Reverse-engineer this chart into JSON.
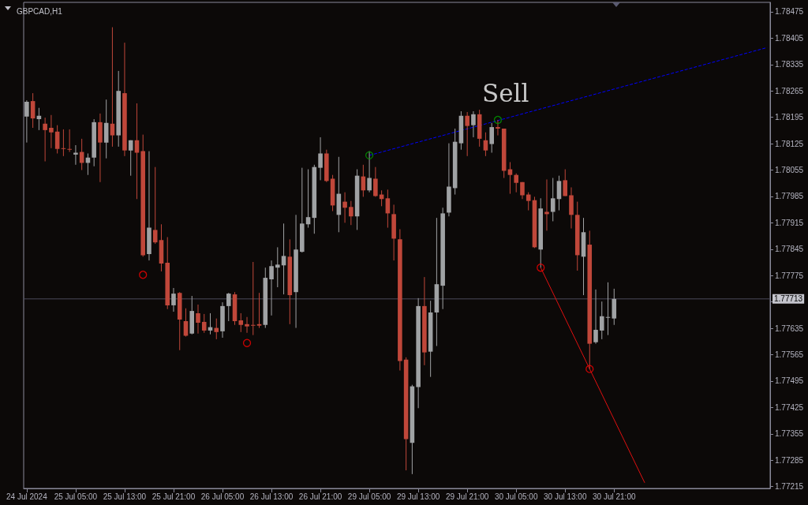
{
  "chart_data": {
    "type": "candlestick",
    "title": "GBPCAD,H1",
    "categories": [
      "24 Jul 2024",
      null,
      null,
      null,
      null,
      null,
      null,
      null,
      "25 Jul 05:00",
      null,
      null,
      null,
      null,
      null,
      null,
      null,
      "25 Jul 13:00",
      null,
      null,
      null,
      null,
      null,
      null,
      null,
      "25 Jul 21:00",
      null,
      null,
      null,
      null,
      null,
      null,
      null,
      "26 Jul 05:00",
      null,
      null,
      null,
      null,
      null,
      null,
      null,
      "26 Jul 13:00",
      null,
      null,
      null,
      null,
      null,
      null,
      null,
      "26 Jul 21:00",
      null,
      null,
      null,
      null,
      null,
      null,
      null,
      "29 Jul 05:00",
      null,
      null,
      null,
      null,
      null,
      null,
      null,
      "29 Jul 13:00",
      null,
      null,
      null,
      null,
      null,
      null,
      null,
      "29 Jul 21:00",
      null,
      null,
      null,
      null,
      null,
      null,
      null,
      "30 Jul 05:00",
      null,
      null,
      null,
      null,
      null,
      null,
      null,
      "30 Jul 13:00",
      null,
      null,
      null,
      null,
      null,
      null,
      null,
      "30 Jul 21:00",
      null,
      null,
      null,
      null,
      null,
      null,
      null,
      null,
      null,
      null,
      null,
      null,
      null,
      null,
      null,
      null,
      null,
      null,
      null,
      null,
      null,
      null,
      null,
      null,
      null
    ],
    "ylim": [
      1.7721,
      1.785
    ],
    "yticks": [
      1.78475,
      1.78405,
      1.78335,
      1.78265,
      1.78195,
      1.78125,
      1.78055,
      1.77985,
      1.77915,
      1.77845,
      1.77775,
      {
        "value": 1.77705,
        "label": null
      },
      1.77635,
      1.77565,
      1.77495,
      1.77425,
      1.77355,
      1.77285,
      1.77215
    ],
    "ohlc": [
      [
        1.78197,
        1.7824,
        1.78128,
        1.78236
      ],
      [
        1.78238,
        1.78259,
        1.78167,
        1.78192
      ],
      [
        1.7819,
        1.7822,
        1.78161,
        1.78199
      ],
      [
        1.78178,
        1.78194,
        1.78078,
        1.78161
      ],
      [
        1.78167,
        1.78201,
        1.78113,
        1.78155
      ],
      [
        1.78157,
        1.78174,
        1.78099,
        1.78111
      ],
      [
        1.78113,
        1.78163,
        1.78092,
        1.78111
      ],
      [
        1.78111,
        1.78163,
        1.78103,
        1.78109
      ],
      [
        1.78096,
        1.78121,
        1.78069,
        1.78101
      ],
      [
        1.78103,
        1.78138,
        1.78055,
        1.78074
      ],
      [
        1.78074,
        1.78099,
        1.78042,
        1.78088
      ],
      [
        1.78088,
        1.7819,
        1.78065,
        1.78182
      ],
      [
        1.78182,
        1.78205,
        1.78023,
        1.78128
      ],
      [
        1.78128,
        1.78242,
        1.78086,
        1.7818
      ],
      [
        1.78178,
        1.78434,
        1.78117,
        1.78147
      ],
      [
        1.78147,
        1.78318,
        1.78117,
        1.78265
      ],
      [
        1.78259,
        1.78393,
        1.78092,
        1.78107
      ],
      [
        1.78107,
        1.78134,
        1.7804,
        1.78134
      ],
      [
        1.78134,
        1.78232,
        1.77978,
        1.78101
      ],
      [
        1.78105,
        1.78149,
        1.77825,
        1.77829
      ],
      [
        1.77832,
        1.78105,
        1.77815,
        1.77902
      ],
      [
        1.77896,
        1.78063,
        1.77859,
        1.77863
      ],
      [
        1.77869,
        1.77911,
        1.77786,
        1.77807
      ],
      [
        1.77809,
        1.77877,
        1.77686,
        1.77696
      ],
      [
        1.77696,
        1.77742,
        1.77679,
        1.77727
      ],
      [
        1.77729,
        1.77731,
        1.77577,
        1.77658
      ],
      [
        1.77654,
        1.77688,
        1.77613,
        1.77615
      ],
      [
        1.77621,
        1.77721,
        1.77619,
        1.77681
      ],
      [
        1.77675,
        1.77698,
        1.77621,
        1.7765
      ],
      [
        1.77652,
        1.77673,
        1.77623,
        1.77629
      ],
      [
        1.77629,
        1.77675,
        1.77619,
        1.77638
      ],
      [
        1.77636,
        1.77661,
        1.77606,
        1.77625
      ],
      [
        1.77627,
        1.77704,
        1.7761,
        1.77694
      ],
      [
        1.77694,
        1.77729,
        1.77654,
        1.77727
      ],
      [
        1.77725,
        1.77731,
        1.77644,
        1.77654
      ],
      [
        1.77656,
        1.77675,
        1.77625,
        1.77644
      ],
      [
        1.77646,
        1.77665,
        1.77623,
        1.7764
      ],
      [
        1.77644,
        1.77811,
        1.77617,
        1.77642
      ],
      [
        1.77646,
        1.77729,
        1.77636,
        1.77642
      ],
      [
        1.77644,
        1.77796,
        1.77636,
        1.77769
      ],
      [
        1.77765,
        1.77815,
        1.77669,
        1.778
      ],
      [
        1.77796,
        1.7785,
        1.77744,
        1.77804
      ],
      [
        1.77802,
        1.77913,
        1.77725,
        1.77827
      ],
      [
        1.77825,
        1.77871,
        1.77646,
        1.77723
      ],
      [
        1.77731,
        1.77936,
        1.77636,
        1.77844
      ],
      [
        1.77838,
        1.78061,
        1.77836,
        1.77913
      ],
      [
        1.77911,
        1.78057,
        1.77902,
        1.7793
      ],
      [
        1.77928,
        1.78069,
        1.77886,
        1.78063
      ],
      [
        1.78061,
        1.78142,
        1.78028,
        1.78099
      ],
      [
        1.78099,
        1.78109,
        1.78023,
        1.78026
      ],
      [
        1.78032,
        1.78042,
        1.77946,
        1.77961
      ],
      [
        1.77936,
        1.7809,
        1.7789,
        1.77992
      ],
      [
        1.77971,
        1.77996,
        1.77915,
        1.77955
      ],
      [
        1.77957,
        1.77973,
        1.77909,
        1.77932
      ],
      [
        1.77932,
        1.78057,
        1.77896,
        1.7804
      ],
      [
        1.78038,
        1.78069,
        1.77984,
        1.78001
      ],
      [
        1.78001,
        1.78105,
        1.77996,
        1.78034
      ],
      [
        1.78032,
        1.78063,
        1.77984,
        1.77986
      ],
      [
        1.7799,
        1.78001,
        1.77959,
        1.77978
      ],
      [
        1.7798,
        1.78003,
        1.77902,
        1.7794
      ],
      [
        1.77938,
        1.77963,
        1.77815,
        1.77873
      ],
      [
        1.77871,
        1.77898,
        1.77523,
        1.77548
      ],
      [
        1.77552,
        1.77558,
        1.77258,
        1.77341
      ],
      [
        1.77331,
        1.77485,
        1.77248,
        1.77481
      ],
      [
        1.77479,
        1.77715,
        1.77423,
        1.77694
      ],
      [
        1.77694,
        1.77771,
        1.77537,
        1.77571
      ],
      [
        1.77573,
        1.77708,
        1.77506,
        1.77677
      ],
      [
        1.77677,
        1.77928,
        1.77588,
        1.77752
      ],
      [
        1.77748,
        1.77955,
        1.77686,
        1.7794
      ],
      [
        1.77942,
        1.78126,
        1.77932,
        1.78011
      ],
      [
        1.78007,
        1.78165,
        1.7799,
        1.7813
      ],
      [
        1.78126,
        1.78211,
        1.78109,
        1.78199
      ],
      [
        1.78199,
        1.78209,
        1.78092,
        1.78172
      ],
      [
        1.78174,
        1.78211,
        1.78142,
        1.78203
      ],
      [
        1.78203,
        1.78215,
        1.78117,
        1.78138
      ],
      [
        1.78134,
        1.78155,
        1.78092,
        1.78107
      ],
      [
        1.78124,
        1.7818,
        1.78101,
        1.78169
      ],
      [
        1.78169,
        1.78188,
        1.78147,
        1.78165
      ],
      [
        1.78165,
        1.78165,
        1.78034,
        1.78053
      ],
      [
        1.78057,
        1.78076,
        1.77992,
        1.78042
      ],
      [
        1.78042,
        1.78046,
        1.77996,
        1.78021
      ],
      [
        1.78023,
        1.78023,
        1.77978,
        1.77988
      ],
      [
        1.7799,
        1.77996,
        1.77948,
        1.77973
      ],
      [
        1.77975,
        1.77984,
        1.77848,
        1.7785
      ],
      [
        1.77844,
        1.7798,
        1.77796,
        1.77953
      ],
      [
        1.77944,
        1.7803,
        1.77894,
        1.77938
      ],
      [
        1.77944,
        1.78034,
        1.77919,
        1.7798
      ],
      [
        1.77978,
        1.7804,
        1.77948,
        1.78026
      ],
      [
        1.78028,
        1.78057,
        1.77986,
        1.77986
      ],
      [
        1.77988,
        1.78009,
        1.779,
        1.77936
      ],
      [
        1.77936,
        1.77971,
        1.77788,
        1.77829
      ],
      [
        1.77825,
        1.77928,
        1.77723,
        1.7789
      ],
      [
        1.77857,
        1.77894,
        1.77527,
        1.77594
      ],
      [
        1.77598,
        1.77738,
        1.77594,
        1.77631
      ],
      [
        1.77629,
        1.77706,
        1.77606,
        1.77667
      ],
      [
        1.77663,
        1.77757,
        1.77617,
        1.77665
      ],
      [
        1.77661,
        1.7774,
        1.77644,
        1.77713
      ],
      null,
      null,
      null,
      null,
      null,
      null,
      null,
      null,
      null,
      null,
      null,
      null,
      null,
      null,
      null,
      null,
      null,
      null,
      null,
      null,
      null,
      null,
      null,
      null,
      null
    ],
    "colors": [
      "#a0a2a4",
      "#c0473a",
      "#a0a2a4",
      "#c0473a",
      "#c0473a",
      "#c0473a",
      "#c0473a",
      "#c0473a",
      "#a0a2a4",
      "#c0473a",
      "#a0a2a4",
      "#a0a2a4",
      "#c0473a",
      "#a0a2a4",
      "#c0473a",
      "#a0a2a4",
      "#c0473a",
      "#a0a2a4",
      "#c0473a",
      "#c0473a",
      "#a0a2a4",
      "#c0473a",
      "#c0473a",
      "#c0473a",
      "#a0a2a4",
      "#c0473a",
      "#c0473a",
      "#a0a2a4",
      "#c0473a",
      "#c0473a",
      "#a0a2a4",
      "#c0473a",
      "#a0a2a4",
      "#a0a2a4",
      "#c0473a",
      "#c0473a",
      "#c0473a",
      "#c0473a",
      "#c0473a",
      "#a0a2a4",
      "#a0a2a4",
      "#a0a2a4",
      "#a0a2a4",
      "#c0473a",
      "#a0a2a4",
      "#a0a2a4",
      "#a0a2a4",
      "#a0a2a4",
      "#a0a2a4",
      "#c0473a",
      "#c0473a",
      "#a0a2a4",
      "#c0473a",
      "#c0473a",
      "#a0a2a4",
      "#c0473a",
      "#a0a2a4",
      "#c0473a",
      "#c0473a",
      "#c0473a",
      "#c0473a",
      "#c0473a",
      "#c0473a",
      "#a0a2a4",
      "#a0a2a4",
      "#c0473a",
      "#a0a2a4",
      "#a0a2a4",
      "#a0a2a4",
      "#a0a2a4",
      "#a0a2a4",
      "#a0a2a4",
      "#c0473a",
      "#a0a2a4",
      "#c0473a",
      "#c0473a",
      "#a0a2a4",
      "#c0473a",
      "#c0473a",
      "#c0473a",
      "#c0473a",
      "#c0473a",
      "#c0473a",
      "#c0473a",
      "#a0a2a4",
      "#c0473a",
      "#a0a2a4",
      "#a0a2a4",
      "#c0473a",
      "#c0473a",
      "#c0473a",
      "#a0a2a4",
      "#c0473a",
      "#a0a2a4",
      "#a0a2a4",
      "#a0a2a4",
      "#a0a2a4",
      null,
      null,
      null,
      null,
      null,
      null,
      null,
      null,
      null,
      null,
      null,
      null,
      null,
      null,
      null,
      null,
      null,
      null,
      null,
      null,
      null,
      null,
      null,
      null,
      null
    ],
    "series": [
      {
        "type": "line",
        "color": "#0000ff",
        "line_style": "dashed",
        "values": [
          null,
          null,
          null,
          null,
          null,
          null,
          null,
          null,
          null,
          null,
          null,
          null,
          null,
          null,
          null,
          null,
          null,
          null,
          null,
          null,
          null,
          null,
          null,
          null,
          null,
          null,
          null,
          null,
          null,
          null,
          null,
          null,
          null,
          null,
          null,
          null,
          null,
          null,
          null,
          null,
          null,
          null,
          null,
          null,
          null,
          null,
          null,
          null,
          null,
          null,
          null,
          null,
          null,
          null,
          null,
          null,
          1.78094,
          null,
          null,
          null,
          null,
          null,
          null,
          null,
          null,
          null,
          null,
          null,
          null,
          null,
          null,
          null,
          null,
          null,
          null,
          null,
          null,
          null,
          null,
          null,
          null,
          null,
          null,
          null,
          null,
          null,
          null,
          null,
          null,
          null,
          null,
          null,
          null,
          null,
          null,
          null,
          null,
          null,
          null,
          null,
          null,
          null,
          null,
          null,
          null,
          null,
          null,
          null,
          null,
          null,
          null,
          null,
          null,
          null,
          null,
          null,
          null,
          null,
          null,
          null,
          null,
          1.7838
        ]
      },
      {
        "type": "line",
        "color": "#e01010",
        "line_style": "solid",
        "values": [
          null,
          null,
          null,
          null,
          null,
          null,
          null,
          null,
          null,
          null,
          null,
          null,
          null,
          null,
          null,
          null,
          null,
          null,
          null,
          null,
          null,
          null,
          null,
          null,
          null,
          null,
          null,
          null,
          null,
          null,
          null,
          null,
          null,
          null,
          null,
          null,
          null,
          null,
          null,
          null,
          null,
          null,
          null,
          null,
          null,
          null,
          null,
          null,
          null,
          null,
          null,
          null,
          null,
          null,
          null,
          null,
          null,
          null,
          null,
          null,
          null,
          null,
          null,
          null,
          null,
          null,
          null,
          null,
          null,
          null,
          null,
          null,
          null,
          null,
          null,
          null,
          null,
          null,
          null,
          null,
          null,
          null,
          null,
          null,
          1.77796,
          null,
          null,
          null,
          null,
          null,
          null,
          null,
          null,
          null,
          null,
          null,
          null,
          null,
          null,
          null,
          null,
          1.77225,
          null,
          null,
          null,
          null,
          null,
          null,
          null,
          null,
          null,
          null,
          null,
          null,
          null,
          null,
          null,
          null,
          null,
          null,
          null,
          null
        ]
      },
      {
        "type": "scatter",
        "color": "#ff0000",
        "marker": "circle",
        "values": [
          null,
          null,
          null,
          null,
          null,
          null,
          null,
          null,
          null,
          null,
          null,
          null,
          null,
          null,
          null,
          null,
          null,
          null,
          null,
          1.77777,
          null,
          null,
          null,
          null,
          null,
          null,
          null,
          null,
          null,
          null,
          null,
          null,
          null,
          null,
          null,
          null,
          1.77596,
          null,
          null,
          null,
          null,
          null,
          null,
          null,
          null,
          null,
          null,
          null,
          null,
          null,
          null,
          null,
          null,
          null,
          null,
          null,
          null,
          null,
          null,
          null,
          null,
          null,
          null,
          null,
          null,
          null,
          null,
          null,
          null,
          null,
          null,
          null,
          null,
          null,
          null,
          null,
          null,
          null,
          null,
          null,
          null,
          null,
          null,
          null,
          1.77796,
          null,
          null,
          null,
          null,
          null,
          null,
          null,
          1.77527,
          null,
          null,
          null,
          null,
          null,
          null,
          null,
          null,
          null,
          null,
          null,
          null,
          null,
          null,
          null,
          null,
          null,
          null,
          null,
          null,
          null,
          null,
          null,
          null,
          null,
          null,
          null,
          null,
          null
        ]
      },
      {
        "type": "scatter",
        "color": "#00a000",
        "marker": "circle",
        "values": [
          null,
          null,
          null,
          null,
          null,
          null,
          null,
          null,
          null,
          null,
          null,
          null,
          null,
          null,
          null,
          null,
          null,
          null,
          null,
          null,
          null,
          null,
          null,
          null,
          null,
          null,
          null,
          null,
          null,
          null,
          null,
          null,
          null,
          null,
          null,
          null,
          null,
          null,
          null,
          null,
          null,
          null,
          null,
          null,
          null,
          null,
          null,
          null,
          null,
          null,
          null,
          null,
          null,
          null,
          null,
          null,
          1.78094,
          null,
          null,
          null,
          null,
          null,
          null,
          null,
          null,
          null,
          null,
          null,
          null,
          null,
          null,
          null,
          null,
          null,
          null,
          null,
          null,
          1.78188,
          null,
          null,
          null,
          null,
          null,
          null,
          null,
          null,
          null,
          null,
          null,
          null,
          null,
          null,
          null,
          null,
          null,
          null,
          null,
          null,
          null,
          null,
          null,
          null,
          null,
          null,
          null,
          null,
          null,
          null,
          null,
          null,
          null,
          null,
          null,
          null,
          null,
          null,
          null,
          null,
          null,
          null,
          null,
          null
        ]
      }
    ],
    "ref_lines": [
      {
        "axis": "y",
        "value": 1.77713,
        "label": "1.77713",
        "color": "#4a4a5a"
      }
    ],
    "annotations": [
      "Sell"
    ]
  }
}
